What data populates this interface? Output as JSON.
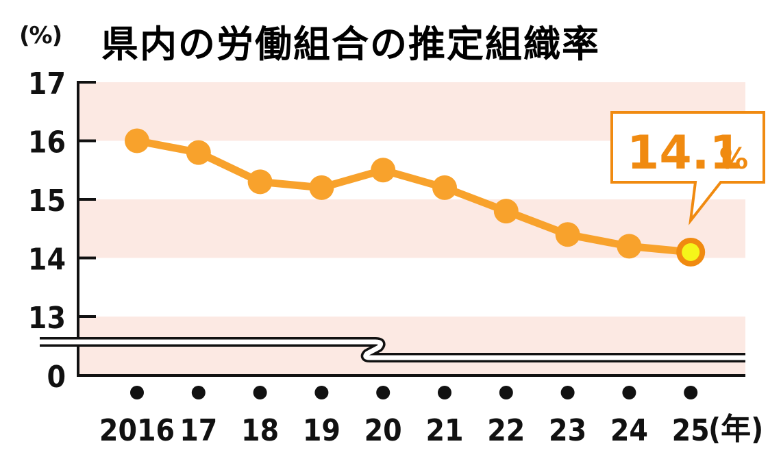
{
  "header": {
    "unit_label": "(%)",
    "title": "県内の労働組合の推定組織率"
  },
  "axis": {
    "y_ticks": [
      "17",
      "16",
      "15",
      "14",
      "13",
      "0"
    ],
    "x_ticks": [
      "2016",
      "17",
      "18",
      "19",
      "20",
      "21",
      "22",
      "23",
      "24",
      "25"
    ],
    "x_unit": "(年)"
  },
  "callout": {
    "value": "14.1",
    "unit": "%"
  },
  "colors": {
    "line": "#f8a22c",
    "band": "#fce9e3",
    "callout": "#f08a10",
    "highlight_fill": "#f5f51a",
    "highlight_ring": "#f08a10"
  },
  "chart_data": {
    "type": "line",
    "title": "県内の労働組合の推定組織率",
    "xlabel": "(年)",
    "ylabel": "(%)",
    "categories": [
      "2016",
      "17",
      "18",
      "19",
      "20",
      "21",
      "22",
      "23",
      "24",
      "25"
    ],
    "series": [
      {
        "name": "推定組織率",
        "values": [
          16.0,
          15.8,
          15.3,
          15.2,
          15.5,
          15.2,
          14.8,
          14.4,
          14.2,
          14.1
        ]
      }
    ],
    "ylim": [
      13,
      17
    ],
    "y_axis_break": "between 0 and 13",
    "y_ticks": [
      0,
      13,
      14,
      15,
      16,
      17
    ],
    "annotations": [
      {
        "x": "25",
        "text": "14.1%"
      }
    ],
    "grid": "alternating horizontal bands",
    "legend": "none"
  }
}
